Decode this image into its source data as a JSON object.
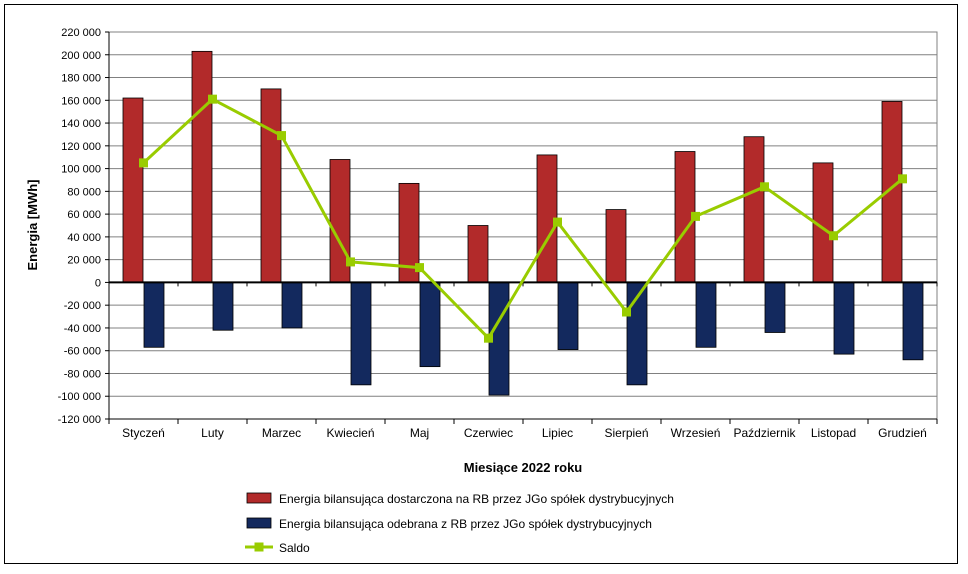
{
  "chart_data": {
    "type": "bar",
    "xlabel": "Miesiące 2022  roku",
    "ylabel": "Energia [MWh]",
    "ylim": [
      -120000,
      220000
    ],
    "ytick_step": 20000,
    "yticks": [
      "220 000",
      "200 000",
      "180 000",
      "160 000",
      "140 000",
      "120 000",
      "100 000",
      "80 000",
      "60 000",
      "40 000",
      "20 000",
      "0",
      "-20 000",
      "-40 000",
      "-60 000",
      "-80 000",
      "-100 000",
      "-120 000"
    ],
    "grid": true,
    "legend_position": "bottom",
    "categories": [
      "Styczeń",
      "Luty",
      "Marzec",
      "Kwiecień",
      "Maj",
      "Czerwiec",
      "Lipiec",
      "Sierpień",
      "Wrzesień",
      "Październik",
      "Listopad",
      "Grudzień"
    ],
    "series": [
      {
        "name": "Energia bilansująca dostarczona na RB przez JGo spółek dystrybucyjnych",
        "kind": "bar",
        "color": "#B22A2A",
        "values": [
          162000,
          203000,
          170000,
          108000,
          87000,
          50000,
          112000,
          64000,
          115000,
          128000,
          105000,
          159000
        ]
      },
      {
        "name": "Energia bilansująca odebrana z RB przez JGo spółek dystrybucyjnych",
        "kind": "bar",
        "color": "#13295E",
        "values": [
          -57000,
          -42000,
          -40000,
          -90000,
          -74000,
          -99000,
          -59000,
          -90000,
          -57000,
          -44000,
          -63000,
          -68000
        ]
      },
      {
        "name": "Saldo",
        "kind": "line",
        "color": "#99CC00",
        "values": [
          105000,
          161000,
          129000,
          18000,
          13000,
          -49000,
          53000,
          -26000,
          58000,
          84000,
          41000,
          91000
        ]
      }
    ]
  }
}
